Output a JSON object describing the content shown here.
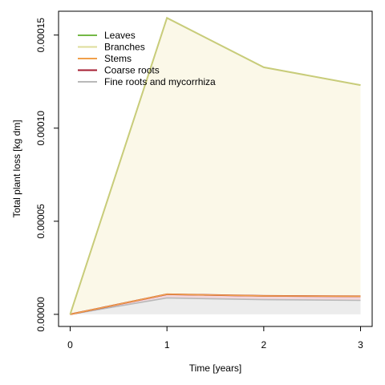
{
  "chart_data": {
    "type": "area",
    "title": "",
    "xlabel": "Time [years]",
    "ylabel": "Total plant loss [kg dm]",
    "x": [
      0,
      1,
      2,
      3
    ],
    "xlim": [
      -0.12,
      3.12
    ],
    "ylim": [
      -6.5e-06,
      0.0001628
    ],
    "x_ticks": [
      0,
      1,
      2,
      3
    ],
    "x_tick_labels": [
      "0",
      "1",
      "2",
      "3"
    ],
    "y_ticks": [
      0,
      5e-05,
      0.0001,
      0.00015
    ],
    "y_tick_labels": [
      "0.00000",
      "0.00005",
      "0.00010",
      "0.00015"
    ],
    "grid": false,
    "legend_position": "top-left",
    "series": [
      {
        "name": "Leaves",
        "color": "#74b846",
        "fill": "#f4f9ea",
        "values": [
          0,
          0,
          0,
          0
        ]
      },
      {
        "name": "Branches",
        "color": "#dedd9a",
        "fill": "#fbf8e8",
        "values": [
          0,
          0.0001484,
          0.0001228,
          0.0001134
        ]
      },
      {
        "name": "Stems",
        "color": "#f0a04a",
        "fill": "#fdf0e0",
        "values": [
          0,
          0,
          0,
          0
        ]
      },
      {
        "name": "Coarse roots",
        "color": "#a51c30",
        "fill": "#f2d7dc",
        "values": [
          0,
          2e-06,
          2e-06,
          2.2e-06
        ]
      },
      {
        "name": "Fine roots and mycorrhiza",
        "color": "#b9b9b9",
        "fill": "#ececec",
        "values": [
          0,
          8.8e-06,
          7.9e-06,
          7.5e-06
        ]
      }
    ],
    "stack_order": [
      "Fine roots and mycorrhiza",
      "Coarse roots",
      "Stems",
      "Branches",
      "Leaves"
    ],
    "top_line_color": "#c8cc7a"
  }
}
